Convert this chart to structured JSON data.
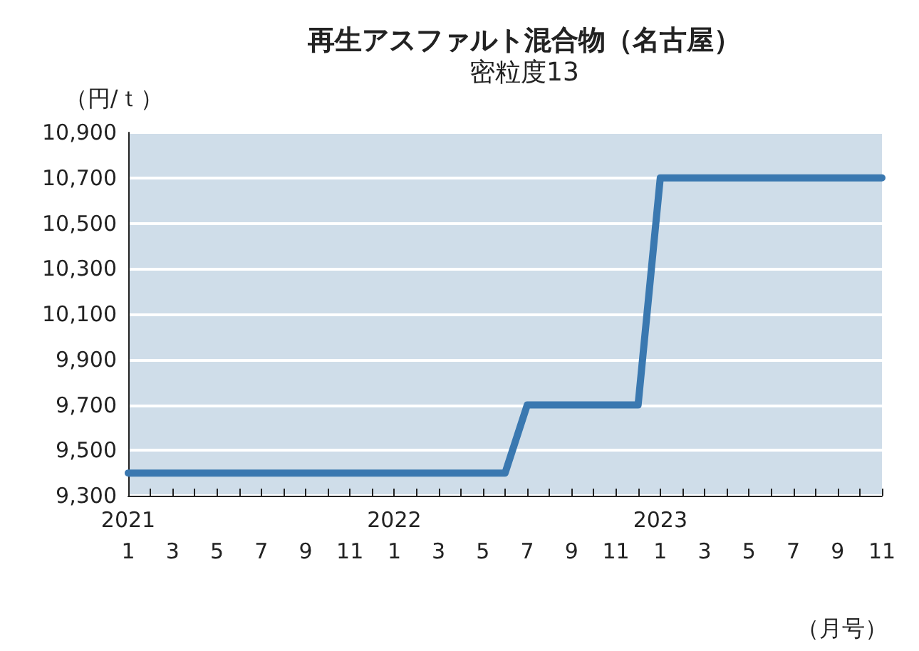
{
  "chart_data": {
    "type": "line",
    "title": "再生アスファルト混合物（名古屋）",
    "subtitle": "密粒度13",
    "ylabel": "（円/ｔ）",
    "xlabel": "（月号）",
    "categories": [
      "2021\n1",
      null,
      "3",
      null,
      "5",
      null,
      "7",
      null,
      "9",
      null,
      "11",
      null,
      "2022\n1",
      null,
      "3",
      null,
      "5",
      null,
      "7",
      null,
      "9",
      null,
      "11",
      null,
      "2023\n1",
      null,
      "3",
      null,
      "5",
      null,
      "7",
      null,
      "9",
      null,
      "11"
    ],
    "series": [
      {
        "color": "#3a78b0",
        "values": [
          9400,
          9400,
          9400,
          9400,
          9400,
          9400,
          9400,
          9400,
          9400,
          9400,
          9400,
          9400,
          9400,
          9400,
          9400,
          9400,
          9400,
          9400,
          9700,
          9700,
          9700,
          9700,
          9700,
          9700,
          10700,
          10700,
          10700,
          10700,
          10700,
          10700,
          10700,
          10700,
          10700,
          10700,
          10700
        ]
      }
    ],
    "ylim": [
      9300,
      10900
    ],
    "yticks": [
      {
        "value": 9300,
        "label": "9,300"
      },
      {
        "value": 9500,
        "label": "9,500"
      },
      {
        "value": 9700,
        "label": "9,700"
      },
      {
        "value": 9900,
        "label": "9,900"
      },
      {
        "value": 10100,
        "label": "10,100"
      },
      {
        "value": 10300,
        "label": "10,300"
      },
      {
        "value": 10500,
        "label": "10,500"
      },
      {
        "value": 10700,
        "label": "10,700"
      },
      {
        "value": 10900,
        "label": "10,900"
      }
    ],
    "grid": "y",
    "marker": "none",
    "line_style": "solid"
  }
}
